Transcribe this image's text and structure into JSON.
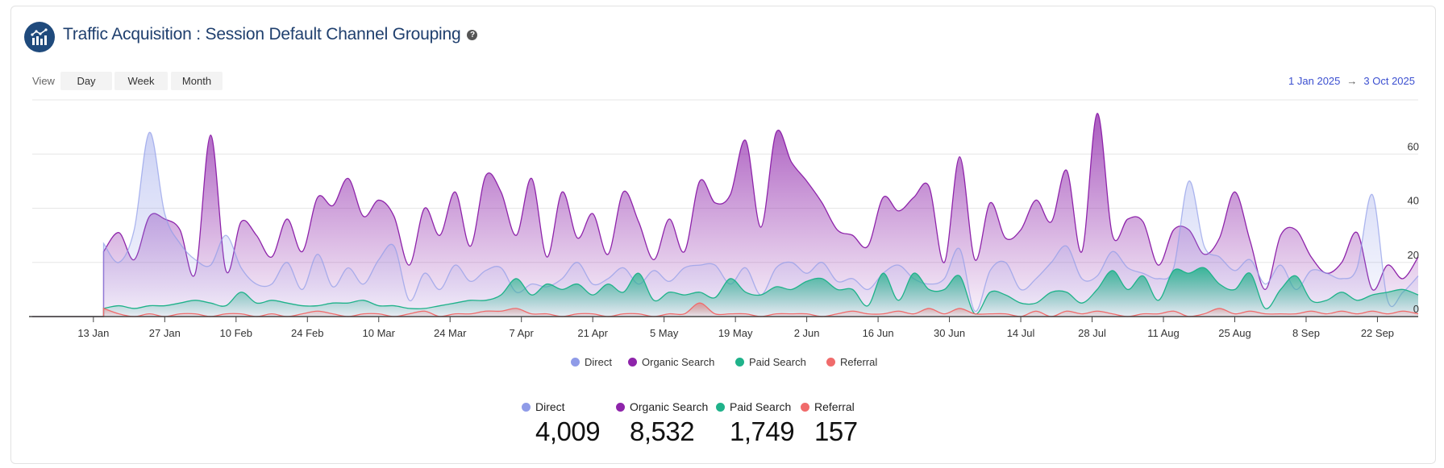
{
  "header": {
    "title": "Traffic Acquisition : Session Default Channel Grouping",
    "help_icon": "question-circle-icon",
    "logo_icon": "bar-chart-trend-icon"
  },
  "view": {
    "label": "View",
    "options": [
      "Day",
      "Week",
      "Month"
    ]
  },
  "date_range": {
    "start": "1 Jan 2025",
    "arrow": "→",
    "end": "3 Oct 2025"
  },
  "colors": {
    "Direct": "#8f9be8",
    "Organic Search": "#8e24aa",
    "Paid Search": "#1fb28a",
    "Referral": "#f06b6b"
  },
  "totals": [
    {
      "name": "Direct",
      "value": "4,009"
    },
    {
      "name": "Organic Search",
      "value": "8,532"
    },
    {
      "name": "Paid Search",
      "value": "1,749"
    },
    {
      "name": "Referral",
      "value": "157"
    }
  ],
  "chart_data": {
    "type": "area",
    "xlim": [
      "2025-01-01",
      "2025-09-30"
    ],
    "ylim": [
      0,
      80
    ],
    "y_ticks": [
      "0",
      "20",
      "40",
      "60"
    ],
    "y_axis_side": "right",
    "grid": true,
    "legend_position": "bottom",
    "x_ticks": [
      "13 Jan",
      "27 Jan",
      "10 Feb",
      "24 Feb",
      "10 Mar",
      "24 Mar",
      "7 Apr",
      "21 Apr",
      "5 May",
      "19 May",
      "2 Jun",
      "16 Jun",
      "30 Jun",
      "14 Jul",
      "28 Jul",
      "11 Aug",
      "25 Aug",
      "8 Sep",
      "22 Sep"
    ],
    "dates": [
      "2025-01-15",
      "2025-01-18",
      "2025-01-21",
      "2025-01-24",
      "2025-01-27",
      "2025-01-30",
      "2025-02-02",
      "2025-02-05",
      "2025-02-08",
      "2025-02-11",
      "2025-02-14",
      "2025-02-17",
      "2025-02-20",
      "2025-02-23",
      "2025-02-26",
      "2025-03-01",
      "2025-03-04",
      "2025-03-07",
      "2025-03-10",
      "2025-03-13",
      "2025-03-16",
      "2025-03-19",
      "2025-03-22",
      "2025-03-25",
      "2025-03-28",
      "2025-03-31",
      "2025-04-03",
      "2025-04-06",
      "2025-04-09",
      "2025-04-12",
      "2025-04-15",
      "2025-04-18",
      "2025-04-21",
      "2025-04-24",
      "2025-04-27",
      "2025-04-30",
      "2025-05-03",
      "2025-05-06",
      "2025-05-09",
      "2025-05-12",
      "2025-05-15",
      "2025-05-18",
      "2025-05-21",
      "2025-05-24",
      "2025-05-27",
      "2025-05-30",
      "2025-06-02",
      "2025-06-05",
      "2025-06-08",
      "2025-06-11",
      "2025-06-14",
      "2025-06-17",
      "2025-06-20",
      "2025-06-23",
      "2025-06-26",
      "2025-06-29",
      "2025-07-02",
      "2025-07-05",
      "2025-07-08",
      "2025-07-11",
      "2025-07-14",
      "2025-07-17",
      "2025-07-20",
      "2025-07-23",
      "2025-07-26",
      "2025-07-29",
      "2025-08-01",
      "2025-08-04",
      "2025-08-07",
      "2025-08-10",
      "2025-08-13",
      "2025-08-16",
      "2025-08-19",
      "2025-08-22",
      "2025-08-25",
      "2025-08-28",
      "2025-08-31",
      "2025-09-03",
      "2025-09-06",
      "2025-09-09",
      "2025-09-12",
      "2025-09-15",
      "2025-09-18",
      "2025-09-21",
      "2025-09-24",
      "2025-09-27",
      "2025-09-30"
    ],
    "series": [
      {
        "name": "Organic Search",
        "values": [
          24,
          31,
          21,
          37,
          36,
          32,
          16,
          67,
          17,
          35,
          30,
          22,
          36,
          24,
          44,
          41,
          51,
          37,
          43,
          37,
          19,
          40,
          30,
          46,
          26,
          52,
          46,
          30,
          51,
          22,
          46,
          29,
          38,
          23,
          46,
          35,
          21,
          36,
          24,
          50,
          42,
          45,
          65,
          33,
          68,
          57,
          50,
          42,
          32,
          30,
          26,
          44,
          39,
          44,
          48,
          20,
          59,
          21,
          42,
          29,
          32,
          43,
          35,
          54,
          24,
          75,
          30,
          36,
          35,
          19,
          32,
          32,
          23,
          29,
          46,
          28,
          10,
          30,
          32,
          22,
          16,
          20,
          31,
          10,
          19,
          14,
          22
        ]
      },
      {
        "name": "Direct",
        "values": [
          27,
          20,
          32,
          68,
          38,
          27,
          21,
          19,
          30,
          18,
          12,
          12,
          20,
          10,
          23,
          11,
          18,
          12,
          21,
          26,
          6,
          16,
          10,
          19,
          13,
          17,
          18,
          9,
          12,
          11,
          14,
          20,
          12,
          14,
          18,
          12,
          17,
          13,
          18,
          19,
          19,
          12,
          18,
          8,
          18,
          20,
          16,
          20,
          13,
          14,
          10,
          16,
          19,
          14,
          12,
          14,
          25,
          2,
          17,
          20,
          10,
          14,
          20,
          26,
          14,
          15,
          24,
          18,
          16,
          14,
          18,
          50,
          26,
          22,
          17,
          21,
          12,
          19,
          10,
          17,
          16,
          14,
          18,
          45,
          6,
          9,
          15
        ]
      },
      {
        "name": "Paid Search",
        "values": [
          3,
          4,
          3,
          4,
          4,
          5,
          6,
          5,
          4,
          9,
          5,
          6,
          5,
          4,
          4,
          5,
          5,
          6,
          4,
          4,
          3,
          3,
          4,
          5,
          6,
          6,
          8,
          14,
          8,
          12,
          10,
          12,
          8,
          12,
          9,
          16,
          6,
          9,
          8,
          9,
          7,
          14,
          9,
          8,
          11,
          10,
          13,
          14,
          10,
          10,
          4,
          16,
          6,
          16,
          10,
          10,
          15,
          1,
          9,
          8,
          5,
          5,
          9,
          9,
          5,
          10,
          17,
          10,
          15,
          6,
          17,
          16,
          18,
          12,
          10,
          16,
          3,
          10,
          15,
          6,
          6,
          9,
          6,
          8,
          9,
          10,
          8
        ]
      },
      {
        "name": "Referral",
        "values": [
          3,
          1,
          0,
          1,
          0,
          1,
          1,
          0,
          1,
          1,
          0,
          1,
          0,
          1,
          2,
          1,
          0,
          1,
          1,
          0,
          1,
          2,
          0,
          1,
          1,
          2,
          2,
          3,
          1,
          1,
          0,
          1,
          1,
          0,
          1,
          1,
          0,
          1,
          1,
          5,
          1,
          1,
          1,
          0,
          1,
          1,
          1,
          0,
          1,
          2,
          1,
          1,
          2,
          1,
          3,
          1,
          3,
          1,
          1,
          1,
          0,
          2,
          0,
          2,
          1,
          2,
          1,
          0,
          1,
          1,
          2,
          0,
          1,
          3,
          1,
          2,
          1,
          1,
          1,
          2,
          1,
          2,
          1,
          2,
          1,
          2,
          1
        ]
      }
    ]
  }
}
